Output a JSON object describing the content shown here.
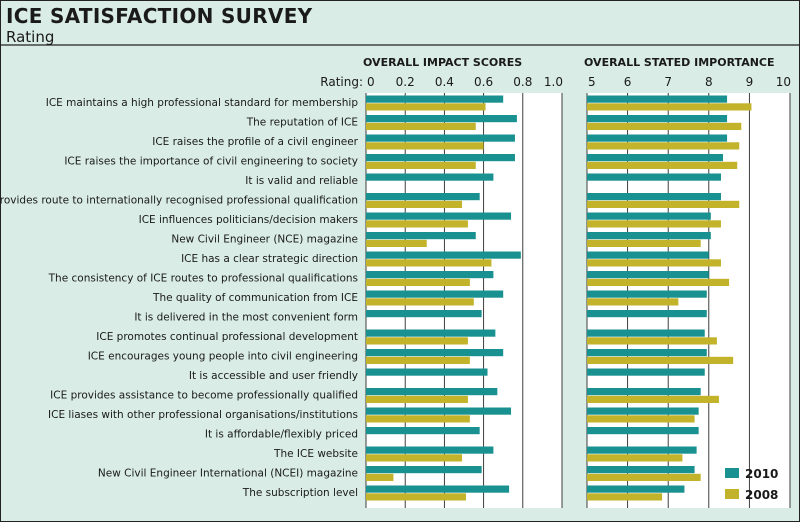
{
  "title": "ICE SATISFACTION SURVEY",
  "subtitle": "Rating",
  "colors": {
    "s2010": "#1a9191",
    "s2008": "#c2b32b",
    "panel": "#ffffff",
    "bg": "#d9ece6",
    "grid": "#2a2a2a"
  },
  "chart_data": {
    "type": "bar",
    "orientation": "horizontal",
    "categories": [
      "ICE maintains a high professional standard for membership",
      "The reputation of ICE",
      "ICE raises the profile of a civil engineer",
      "ICE raises the importance of civil engineering to society",
      "It is valid and reliable",
      "ICE provides route to internationally recognised professional qualification",
      "ICE influences politicians/decision makers",
      "New Civil Engineer (NCE) magazine",
      "ICE has a clear strategic direction",
      "The consistency of ICE routes to professional qualifications",
      "The quality of communication from ICE",
      "It is delivered in the most convenient form",
      "ICE promotes continual professional development",
      "ICE encourages young people into civil engineering",
      "It is accessible and user friendly",
      "ICE provides assistance to become professionally qualified",
      "ICE liases with other professional organisations/institutions",
      "It is affordable/flexibly priced",
      "The ICE website",
      "New Civil Engineer International (NCEI) magazine",
      "The subscription level"
    ],
    "rating_label": "Rating:",
    "legend": [
      "2010",
      "2008"
    ],
    "panels": [
      {
        "title": "OVERALL IMPACT SCORES",
        "xlim": [
          0,
          1.0
        ],
        "ticks": [
          "0",
          "0.2",
          "0.4",
          "0.6",
          "0.8",
          "1.0"
        ],
        "tick_values": [
          0,
          0.2,
          0.4,
          0.6,
          0.8,
          1.0
        ],
        "series": [
          {
            "name": "2010",
            "values": [
              0.7,
              0.77,
              0.76,
              0.76,
              0.65,
              0.58,
              0.74,
              0.56,
              0.79,
              0.65,
              0.7,
              0.59,
              0.66,
              0.7,
              0.62,
              0.67,
              0.74,
              0.58,
              0.65,
              0.59,
              0.73
            ]
          },
          {
            "name": "2008",
            "values": [
              0.61,
              0.56,
              0.6,
              0.56,
              null,
              0.49,
              0.52,
              0.31,
              0.64,
              0.53,
              0.55,
              null,
              0.52,
              0.53,
              null,
              0.52,
              0.53,
              null,
              0.49,
              0.14,
              0.51
            ]
          }
        ]
      },
      {
        "title": "OVERALL STATED IMPORTANCE",
        "xlim": [
          5,
          10
        ],
        "ticks": [
          "5",
          "6",
          "7",
          "8",
          "9",
          "10"
        ],
        "tick_values": [
          5,
          6,
          7,
          8,
          9,
          10
        ],
        "series": [
          {
            "name": "2010",
            "values": [
              8.45,
              8.45,
              8.45,
              8.35,
              8.3,
              8.3,
              8.05,
              8.05,
              8.0,
              8.0,
              7.95,
              7.95,
              7.9,
              7.95,
              7.9,
              7.8,
              7.75,
              7.75,
              7.7,
              7.65,
              7.4
            ]
          },
          {
            "name": "2008",
            "values": [
              9.05,
              8.8,
              8.75,
              8.7,
              null,
              8.75,
              8.3,
              7.8,
              8.3,
              8.5,
              7.25,
              null,
              8.2,
              8.6,
              null,
              8.25,
              7.65,
              null,
              7.35,
              7.8,
              6.85
            ]
          }
        ]
      }
    ]
  }
}
